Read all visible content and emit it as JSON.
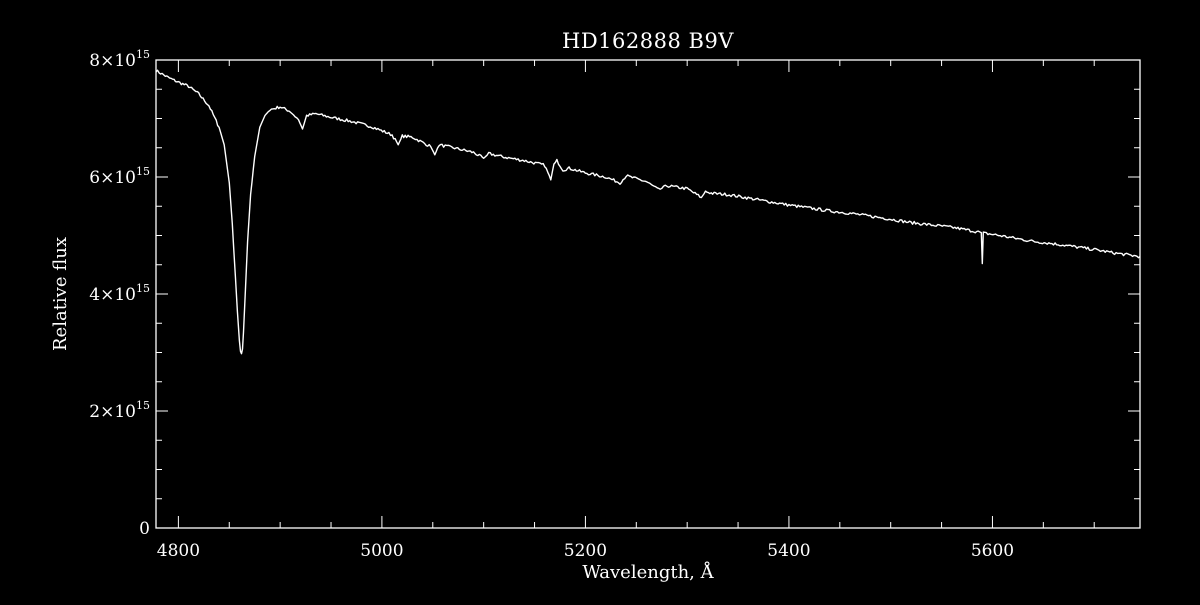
{
  "chart_data": {
    "type": "line",
    "title": "HD162888   B9V",
    "xlabel": "Wavelength, Å",
    "ylabel": "Relative flux",
    "xlim": [
      4778,
      5745
    ],
    "ylim": [
      0,
      8000000000000000.0
    ],
    "x_ticks": [
      {
        "value": 4800,
        "label": "4800"
      },
      {
        "value": 5000,
        "label": "5000"
      },
      {
        "value": 5200,
        "label": "5200"
      },
      {
        "value": 5400,
        "label": "5400"
      },
      {
        "value": 5600,
        "label": "5600"
      }
    ],
    "y_ticks": [
      {
        "value": 0,
        "mantissa": "0",
        "exp": ""
      },
      {
        "value": 2000000000000000.0,
        "mantissa": "2×10",
        "exp": "15"
      },
      {
        "value": 4000000000000000.0,
        "mantissa": "4×10",
        "exp": "15"
      },
      {
        "value": 6000000000000000.0,
        "mantissa": "6×10",
        "exp": "15"
      },
      {
        "value": 8000000000000000.0,
        "mantissa": "8×10",
        "exp": "15"
      }
    ],
    "grid": false,
    "line_color": "#ffffff",
    "background": "#000000",
    "series": [
      {
        "x": [
          4778,
          4790,
          4800,
          4810,
          4820,
          4830,
          4840,
          4845,
          4850,
          4853,
          4856,
          4858,
          4860,
          4861,
          4862,
          4863,
          4864,
          4866,
          4868,
          4871,
          4875,
          4880,
          4885,
          4890,
          4900,
          4910,
          4918,
          4922,
          4926,
          4935,
          4950,
          4970,
          4990,
          5010,
          5016,
          5020,
          5030,
          5048,
          5052,
          5056,
          5070,
          5090,
          5100,
          5105,
          5120,
          5140,
          5160,
          5166,
          5169,
          5172,
          5178,
          5184,
          5200,
          5220,
          5234,
          5240,
          5260,
          5272,
          5280,
          5300,
          5314,
          5318,
          5325,
          5340,
          5360,
          5380,
          5400,
          5420,
          5440,
          5460,
          5480,
          5500,
          5520,
          5540,
          5560,
          5580,
          5589,
          5590,
          5591,
          5600,
          5620,
          5640,
          5660,
          5680,
          5700,
          5720,
          5745
        ],
        "y": [
          7820000000000000.0,
          7700000000000000.0,
          7620000000000000.0,
          7550000000000000.0,
          7420000000000000.0,
          7220000000000000.0,
          6850000000000000.0,
          6550000000000000.0,
          5900000000000000.0,
          5200000000000000.0,
          4300000000000000.0,
          3700000000000000.0,
          3200000000000000.0,
          3020000000000000.0,
          2980000000000000.0,
          3060000000000000.0,
          3350000000000000.0,
          4100000000000000.0,
          4900000000000000.0,
          5700000000000000.0,
          6350000000000000.0,
          6850000000000000.0,
          7050000000000000.0,
          7150000000000000.0,
          7200000000000000.0,
          7120000000000000.0,
          6980000000000000.0,
          6820000000000000.0,
          7050000000000000.0,
          7080000000000000.0,
          7020000000000000.0,
          6950000000000000.0,
          6860000000000000.0,
          6720000000000000.0,
          6550000000000000.0,
          6700000000000000.0,
          6680000000000000.0,
          6520000000000000.0,
          6380000000000000.0,
          6550000000000000.0,
          6500000000000000.0,
          6420000000000000.0,
          6320000000000000.0,
          6400000000000000.0,
          6340000000000000.0,
          6280000000000000.0,
          6200000000000000.0,
          5950000000000000.0,
          6220000000000000.0,
          6280000000000000.0,
          6120000000000000.0,
          6150000000000000.0,
          6070000000000000.0,
          6000000000000000.0,
          5900000000000000.0,
          6020000000000000.0,
          5920000000000000.0,
          5780000000000000.0,
          5850000000000000.0,
          5800000000000000.0,
          5650000000000000.0,
          5750000000000000.0,
          5720000000000000.0,
          5700000000000000.0,
          5640000000000000.0,
          5580000000000000.0,
          5520000000000000.0,
          5470000000000000.0,
          5420000000000000.0,
          5380000000000000.0,
          5330000000000000.0,
          5280000000000000.0,
          5220000000000000.0,
          5180000000000000.0,
          5140000000000000.0,
          5080000000000000.0,
          5050000000000000.0,
          4520000000000000.0,
          5040000000000000.0,
          5020000000000000.0,
          4960000000000000.0,
          4900000000000000.0,
          4860000000000000.0,
          4810000000000000.0,
          4760000000000000.0,
          4700000000000000.0,
          4640000000000000.0
        ]
      }
    ]
  }
}
